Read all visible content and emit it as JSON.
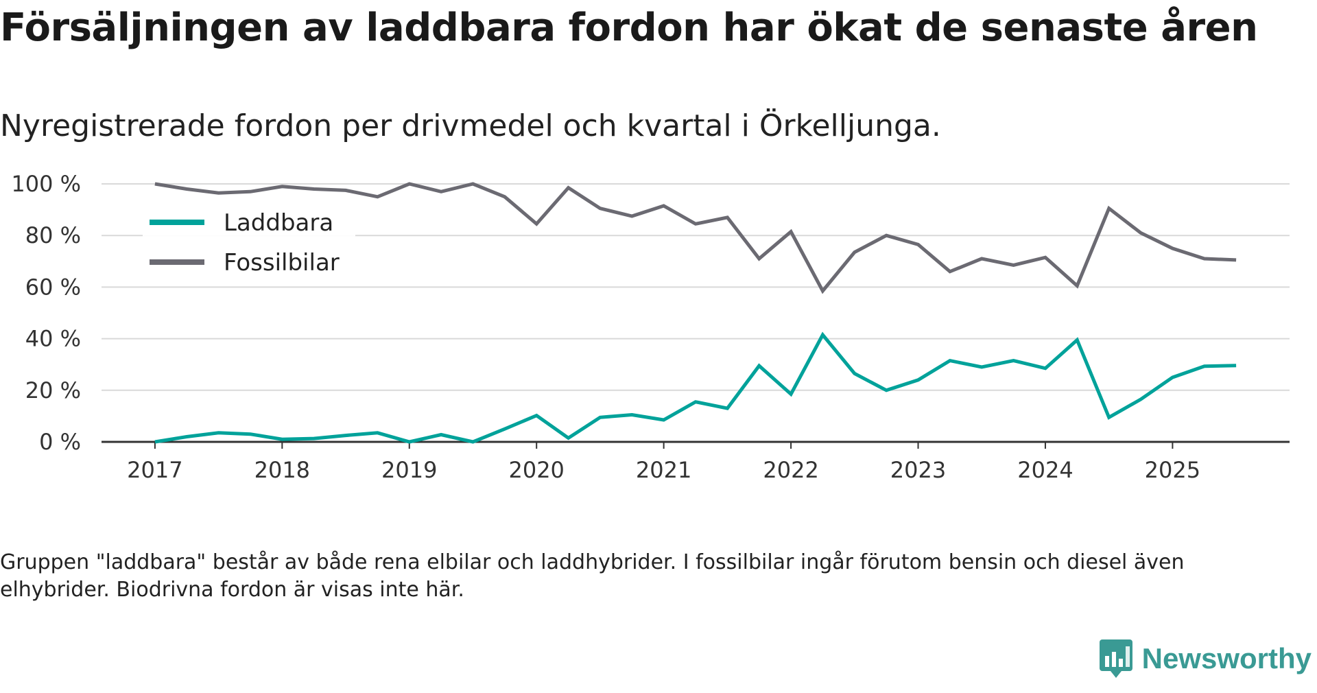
{
  "header": {
    "title": "Försäljningen av laddbara fordon har ökat de senaste åren",
    "subtitle": "Nyregistrerade fordon per drivmedel och kvartal i Örkelljunga."
  },
  "footnote": "Gruppen \"laddbara\" består av både rena elbilar och laddhybrider. I fossilbilar ingår förutom bensin och diesel även elhybrider. Biodrivna fordon är visas inte här.",
  "brand": {
    "name": "Newsworthy",
    "color": "#3a9a94"
  },
  "chart_data": {
    "type": "line",
    "title": "Försäljningen av laddbara fordon har ökat de senaste åren",
    "subtitle": "Nyregistrerade fordon per drivmedel och kvartal i Örkelljunga.",
    "xlabel": "",
    "ylabel": "",
    "x": [
      2017.0,
      2017.25,
      2017.5,
      2017.75,
      2018.0,
      2018.25,
      2018.5,
      2018.75,
      2019.0,
      2019.25,
      2019.5,
      2019.75,
      2020.0,
      2020.25,
      2020.5,
      2020.75,
      2021.0,
      2021.25,
      2021.5,
      2021.75,
      2022.0,
      2022.25,
      2022.5,
      2022.75,
      2023.0,
      2023.25,
      2023.5,
      2023.75,
      2024.0,
      2024.25,
      2024.5,
      2024.75,
      2025.0,
      2025.25,
      2025.5
    ],
    "xlim": [
      2016.58,
      2025.92
    ],
    "xticks": [
      2017,
      2018,
      2019,
      2020,
      2021,
      2022,
      2023,
      2024,
      2025
    ],
    "xtick_labels": [
      "2017",
      "2018",
      "2019",
      "2020",
      "2021",
      "2022",
      "2023",
      "2024",
      "2025"
    ],
    "ylim": [
      0,
      100
    ],
    "yticks": [
      0,
      20,
      40,
      60,
      80,
      100
    ],
    "ytick_labels": [
      "0 %",
      "20 %",
      "40 %",
      "60 %",
      "80 %",
      "100 %"
    ],
    "grid": true,
    "legend_position": "top-left",
    "series": [
      {
        "name": "Laddbara",
        "color": "#00a29a",
        "values": [
          0,
          2,
          3.5,
          3,
          1,
          1.3,
          2.5,
          3.5,
          0,
          2.8,
          0,
          5,
          10.2,
          1.5,
          9.5,
          10.5,
          8.5,
          15.5,
          13,
          29.5,
          18.5,
          41.5,
          26.5,
          20,
          24,
          31.5,
          29,
          31.5,
          28.5,
          39.5,
          9.5,
          16.5,
          25,
          29.3,
          29.6
        ]
      },
      {
        "name": "Fossilbilar",
        "color": "#6b6a72",
        "values": [
          100,
          98,
          96.5,
          97,
          99,
          98,
          97.5,
          95,
          100,
          97,
          100,
          95,
          84.5,
          98.5,
          90.5,
          87.5,
          91.5,
          84.5,
          87,
          71,
          81.5,
          58.5,
          73.5,
          80,
          76.5,
          66,
          71,
          68.5,
          71.5,
          60.5,
          90.5,
          81,
          75,
          71,
          70.5
        ]
      }
    ]
  }
}
